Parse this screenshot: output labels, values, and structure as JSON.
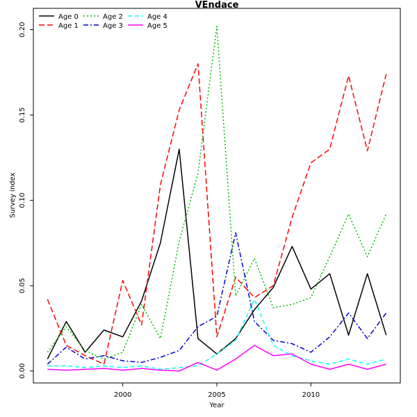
{
  "chart_data": {
    "type": "line",
    "title": "VEndace",
    "xlabel": "Year",
    "ylabel": "Survey index",
    "xlim": [
      1995.25,
      2014.75
    ],
    "ylim": [
      -0.007,
      0.2125
    ],
    "x_ticks": [
      2000,
      2005,
      2010
    ],
    "y_ticks": [
      0.0,
      0.05,
      0.1,
      0.15,
      0.2
    ],
    "y_tick_labels": [
      "0.00",
      "0.05",
      "0.10",
      "0.15",
      "0.20"
    ],
    "grid": false,
    "legend_position": "top-left",
    "x": [
      1996,
      1997,
      1998,
      1999,
      2000,
      2001,
      2002,
      2003,
      2004,
      2005,
      2006,
      2007,
      2008,
      2009,
      2010,
      2011,
      2012,
      2013,
      2014
    ],
    "series": [
      {
        "name": "Age 0",
        "color": "#000000",
        "dash": "solid",
        "values": [
          0.007,
          0.029,
          0.011,
          0.024,
          0.02,
          0.041,
          0.075,
          0.13,
          0.019,
          0.01,
          0.019,
          0.036,
          0.049,
          0.073,
          0.048,
          0.057,
          0.021,
          0.057,
          0.021
        ]
      },
      {
        "name": "Age 1",
        "color": "#ff0000",
        "dash": "longdash",
        "values": [
          0.042,
          0.015,
          0.009,
          0.004,
          0.053,
          0.027,
          0.109,
          0.153,
          0.18,
          0.02,
          0.055,
          0.043,
          0.05,
          0.09,
          0.122,
          0.13,
          0.173,
          0.129,
          0.174
        ]
      },
      {
        "name": "Age 2",
        "color": "#00bb00",
        "dash": "dotted",
        "values": [
          0.011,
          0.026,
          0.012,
          0.007,
          0.011,
          0.039,
          0.019,
          0.076,
          0.116,
          0.202,
          0.044,
          0.066,
          0.037,
          0.039,
          0.043,
          0.067,
          0.092,
          0.067,
          0.092
        ]
      },
      {
        "name": "Age 3",
        "color": "#0000cc",
        "dash": "dotdash",
        "values": [
          0.004,
          0.014,
          0.007,
          0.009,
          0.006,
          0.005,
          0.008,
          0.012,
          0.026,
          0.032,
          0.081,
          0.029,
          0.018,
          0.016,
          0.011,
          0.02,
          0.034,
          0.019,
          0.034
        ]
      },
      {
        "name": "Age 4",
        "color": "#00ffff",
        "dash": "dashed",
        "values": [
          0.003,
          0.003,
          0.002,
          0.003,
          0.002,
          0.003,
          0.001,
          0.002,
          0.003,
          0.01,
          0.018,
          0.042,
          0.015,
          0.009,
          0.006,
          0.004,
          0.007,
          0.004,
          0.007
        ]
      },
      {
        "name": "Age 5",
        "color": "#ff00ff",
        "dash": "solid",
        "values": [
          0.001,
          0.0005,
          0.001,
          0.0015,
          0.0005,
          0.0015,
          0.0005,
          0.0,
          0.005,
          0.0005,
          0.007,
          0.015,
          0.009,
          0.01,
          0.004,
          0.001,
          0.004,
          0.001,
          0.004
        ]
      }
    ]
  }
}
